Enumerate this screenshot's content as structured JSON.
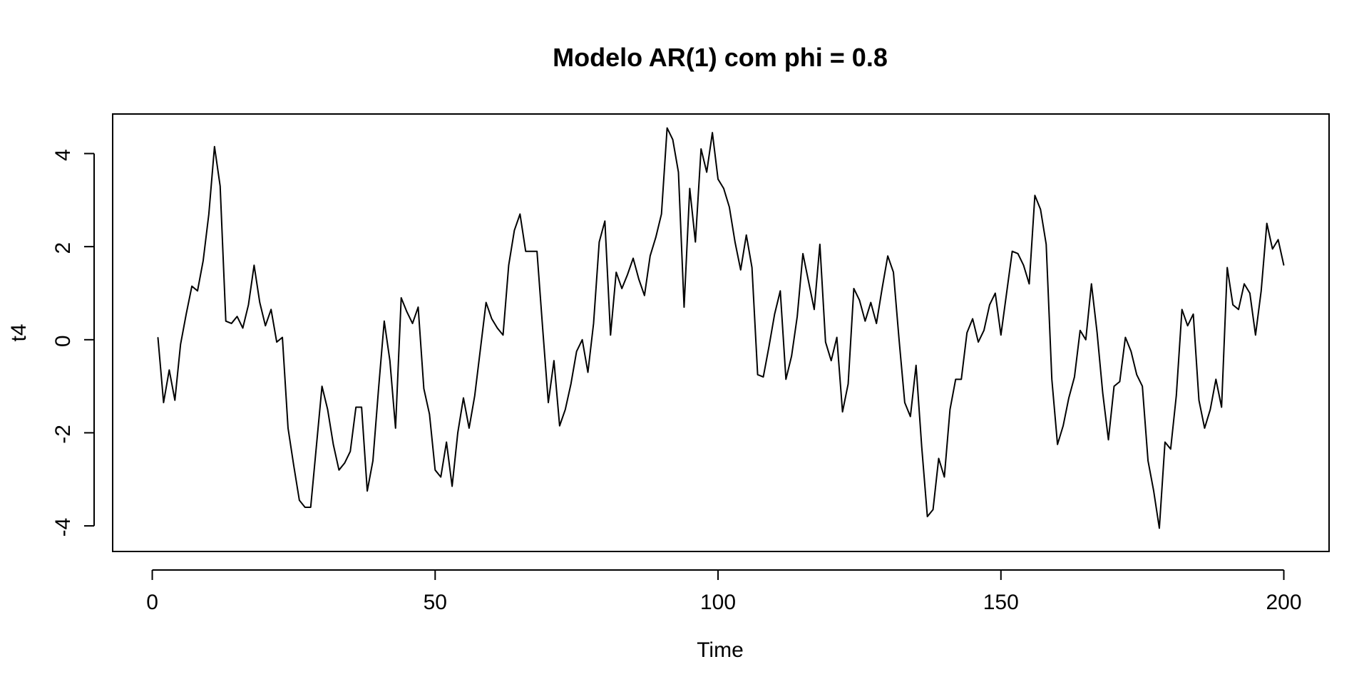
{
  "chart_data": {
    "type": "line",
    "title": "Modelo AR(1) com phi = 0.8",
    "xlabel": "Time",
    "ylabel": "t4",
    "xlim": [
      -7,
      208
    ],
    "ylim": [
      -4.55,
      4.85
    ],
    "xticks": [
      0,
      50,
      100,
      150,
      200
    ],
    "xtick_labels": [
      "0",
      "50",
      "100",
      "150",
      "200"
    ],
    "yticks": [
      -4,
      -2,
      0,
      2,
      4
    ],
    "ytick_labels": [
      "-4",
      "-2",
      "0",
      "2",
      "4"
    ],
    "grid": false,
    "legend": "none",
    "line_color": "#000000",
    "series": [
      {
        "x_start": 1,
        "x_step": 1,
        "values": [
          0.05,
          -1.35,
          -0.65,
          -1.3,
          -0.1,
          0.55,
          1.15,
          1.05,
          1.7,
          2.7,
          4.15,
          3.3,
          0.4,
          0.35,
          0.5,
          0.25,
          0.75,
          1.6,
          0.8,
          0.3,
          0.65,
          -0.05,
          0.05,
          -1.9,
          -2.7,
          -3.45,
          -3.6,
          -3.6,
          -2.3,
          -1.0,
          -1.5,
          -2.25,
          -2.8,
          -2.65,
          -2.4,
          -1.45,
          -1.45,
          -3.25,
          -2.6,
          -1.05,
          0.4,
          -0.45,
          -1.9,
          0.9,
          0.6,
          0.35,
          0.7,
          -1.05,
          -1.6,
          -2.8,
          -2.95,
          -2.2,
          -3.15,
          -2.0,
          -1.25,
          -1.9,
          -1.2,
          -0.2,
          0.8,
          0.45,
          0.25,
          0.1,
          1.6,
          2.35,
          2.7,
          1.9,
          1.9,
          1.9,
          0.25,
          -1.35,
          -0.45,
          -1.85,
          -1.5,
          -0.95,
          -0.25,
          0.0,
          -0.7,
          0.35,
          2.1,
          2.55,
          0.1,
          1.45,
          1.1,
          1.4,
          1.75,
          1.3,
          0.95,
          1.8,
          2.2,
          2.7,
          4.55,
          4.3,
          3.6,
          0.7,
          3.25,
          2.1,
          4.1,
          3.6,
          4.45,
          3.45,
          3.25,
          2.85,
          2.1,
          1.5,
          2.25,
          1.55,
          -0.75,
          -0.8,
          -0.15,
          0.55,
          1.05,
          -0.85,
          -0.35,
          0.5,
          1.85,
          1.25,
          0.65,
          2.05,
          -0.05,
          -0.45,
          0.05,
          -1.55,
          -0.95,
          1.1,
          0.85,
          0.4,
          0.8,
          0.35,
          1.1,
          1.8,
          1.45,
          0.0,
          -1.35,
          -1.65,
          -0.55,
          -2.3,
          -3.8,
          -3.65,
          -2.55,
          -2.95,
          -1.5,
          -0.85,
          -0.85,
          0.15,
          0.45,
          -0.05,
          0.2,
          0.75,
          1.0,
          0.1,
          1.0,
          1.9,
          1.85,
          1.6,
          1.2,
          3.1,
          2.8,
          2.05,
          -0.85,
          -2.25,
          -1.85,
          -1.25,
          -0.8,
          0.2,
          0.0,
          1.2,
          0.15,
          -1.15,
          -2.15,
          -1.0,
          -0.9,
          0.05,
          -0.25,
          -0.75,
          -1.0,
          -2.6,
          -3.25,
          -4.05,
          -2.2,
          -2.35,
          -1.2,
          0.65,
          0.3,
          0.55,
          -1.3,
          -1.9,
          -1.5,
          -0.85,
          -1.45,
          1.55,
          0.75,
          0.65,
          1.2,
          1.0,
          0.1,
          1.05,
          2.5,
          1.95,
          2.15,
          1.6
        ]
      }
    ]
  }
}
